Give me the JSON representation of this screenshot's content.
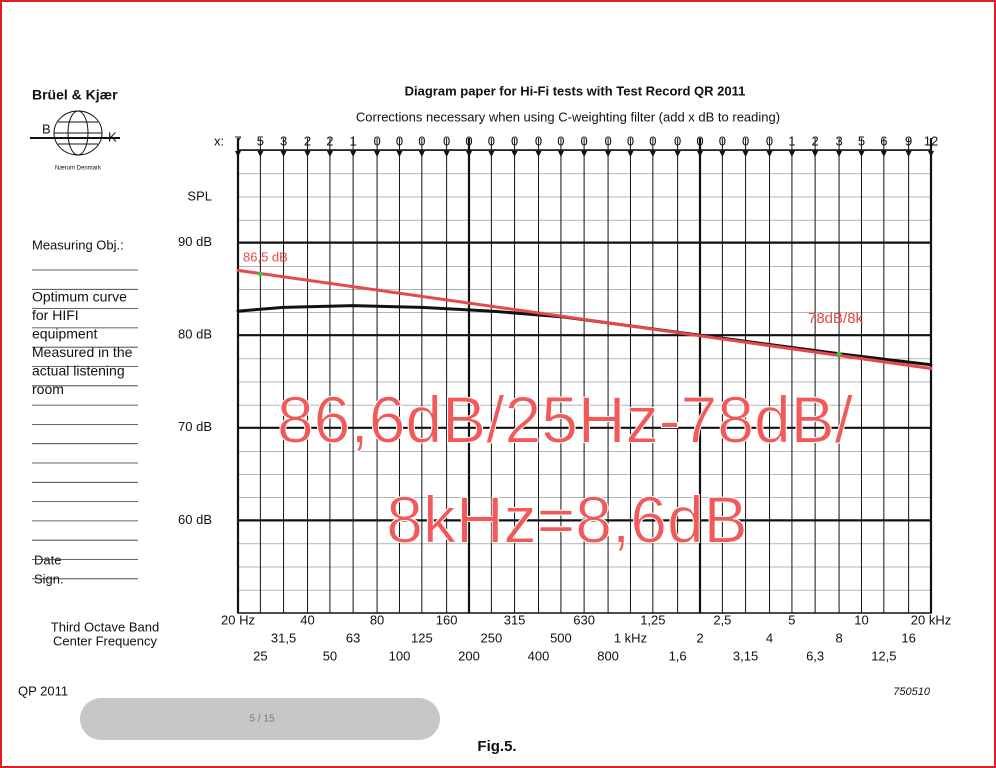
{
  "page": {
    "brand": "Brüel & Kjær",
    "logo": [
      "B",
      "K"
    ],
    "logo_caption": "Nærum Denmark",
    "measuring": "Measuring Obj.:",
    "panel_lines": [
      "Optimum curve",
      "for HIFI",
      "equipment",
      "Measured in the",
      "actual listening",
      "room"
    ],
    "date": "Date",
    "sign": "Sign.",
    "axis_caption": [
      "Third Octave Band",
      "Center Frequency"
    ],
    "code": "QP 2011",
    "number": "750510",
    "caption": "Fig.5.",
    "viewer": "5 / 15"
  },
  "chart_data": {
    "type": "line",
    "title": "Diagram paper for Hi-Fi tests with Test Record QR 2011",
    "subtitle": "Corrections necessary when using C-weighting filter (add x dB  to reading)",
    "corrections_label": "x:",
    "corrections": [
      7,
      5,
      3,
      2,
      2,
      1,
      0,
      0,
      0,
      0,
      0,
      0,
      0,
      0,
      0,
      0,
      0,
      0,
      0,
      0,
      0,
      0,
      0,
      0,
      1,
      2,
      3,
      5,
      6,
      9,
      12
    ],
    "ylabel": "SPL",
    "xscale": "log",
    "xlim": [
      20,
      20000
    ],
    "ylim": [
      50,
      100
    ],
    "yticks": [
      {
        "value": 60,
        "label": "60 dB"
      },
      {
        "value": 70,
        "label": "70 dB"
      },
      {
        "value": 80,
        "label": "80 dB"
      },
      {
        "value": 90,
        "label": "90 dB"
      }
    ],
    "xticks": [
      {
        "value": 20,
        "label": "20 Hz"
      },
      25,
      {
        "value": 31.5,
        "label": "31,5"
      },
      40,
      50,
      63,
      80,
      100,
      125,
      160,
      200,
      250,
      315,
      400,
      500,
      630,
      800,
      {
        "value": 1000,
        "label": "1 kHz"
      },
      {
        "value": 1250,
        "label": "1,25"
      },
      {
        "value": 1600,
        "label": "1,6"
      },
      {
        "value": 2000,
        "label": "2"
      },
      {
        "value": 2500,
        "label": "2,5"
      },
      {
        "value": 3150,
        "label": "3,15"
      },
      {
        "value": 4000,
        "label": "4"
      },
      {
        "value": 5000,
        "label": "5"
      },
      {
        "value": 6300,
        "label": "6,3"
      },
      {
        "value": 8000,
        "label": "8"
      },
      {
        "value": 10000,
        "label": "10"
      },
      {
        "value": 12500,
        "label": "12,5"
      },
      {
        "value": 16000,
        "label": "16"
      },
      {
        "value": 20000,
        "label": "20 kHz"
      }
    ],
    "series": [
      {
        "color": "#111111",
        "x": [
          20,
          31.5,
          63,
          125,
          250,
          500,
          1000,
          2000,
          4000,
          8000,
          20000
        ],
        "values": [
          82.6,
          83.0,
          83.2,
          83.0,
          82.6,
          82.0,
          81.0,
          80.0,
          79.0,
          78.0,
          76.8
        ]
      },
      {
        "color": "#e84848",
        "x": [
          20,
          20000
        ],
        "values": [
          87.0,
          76.4
        ]
      },
      {
        "color": "#2ecc40",
        "style": "points",
        "x": [
          25,
          8000
        ],
        "values": [
          86.6,
          78.0
        ]
      }
    ],
    "annotations": [
      "86,5 dB",
      "78dB/8k",
      "86,6dB/25Hz-78dB/",
      "8kHz=8,6dB"
    ]
  }
}
